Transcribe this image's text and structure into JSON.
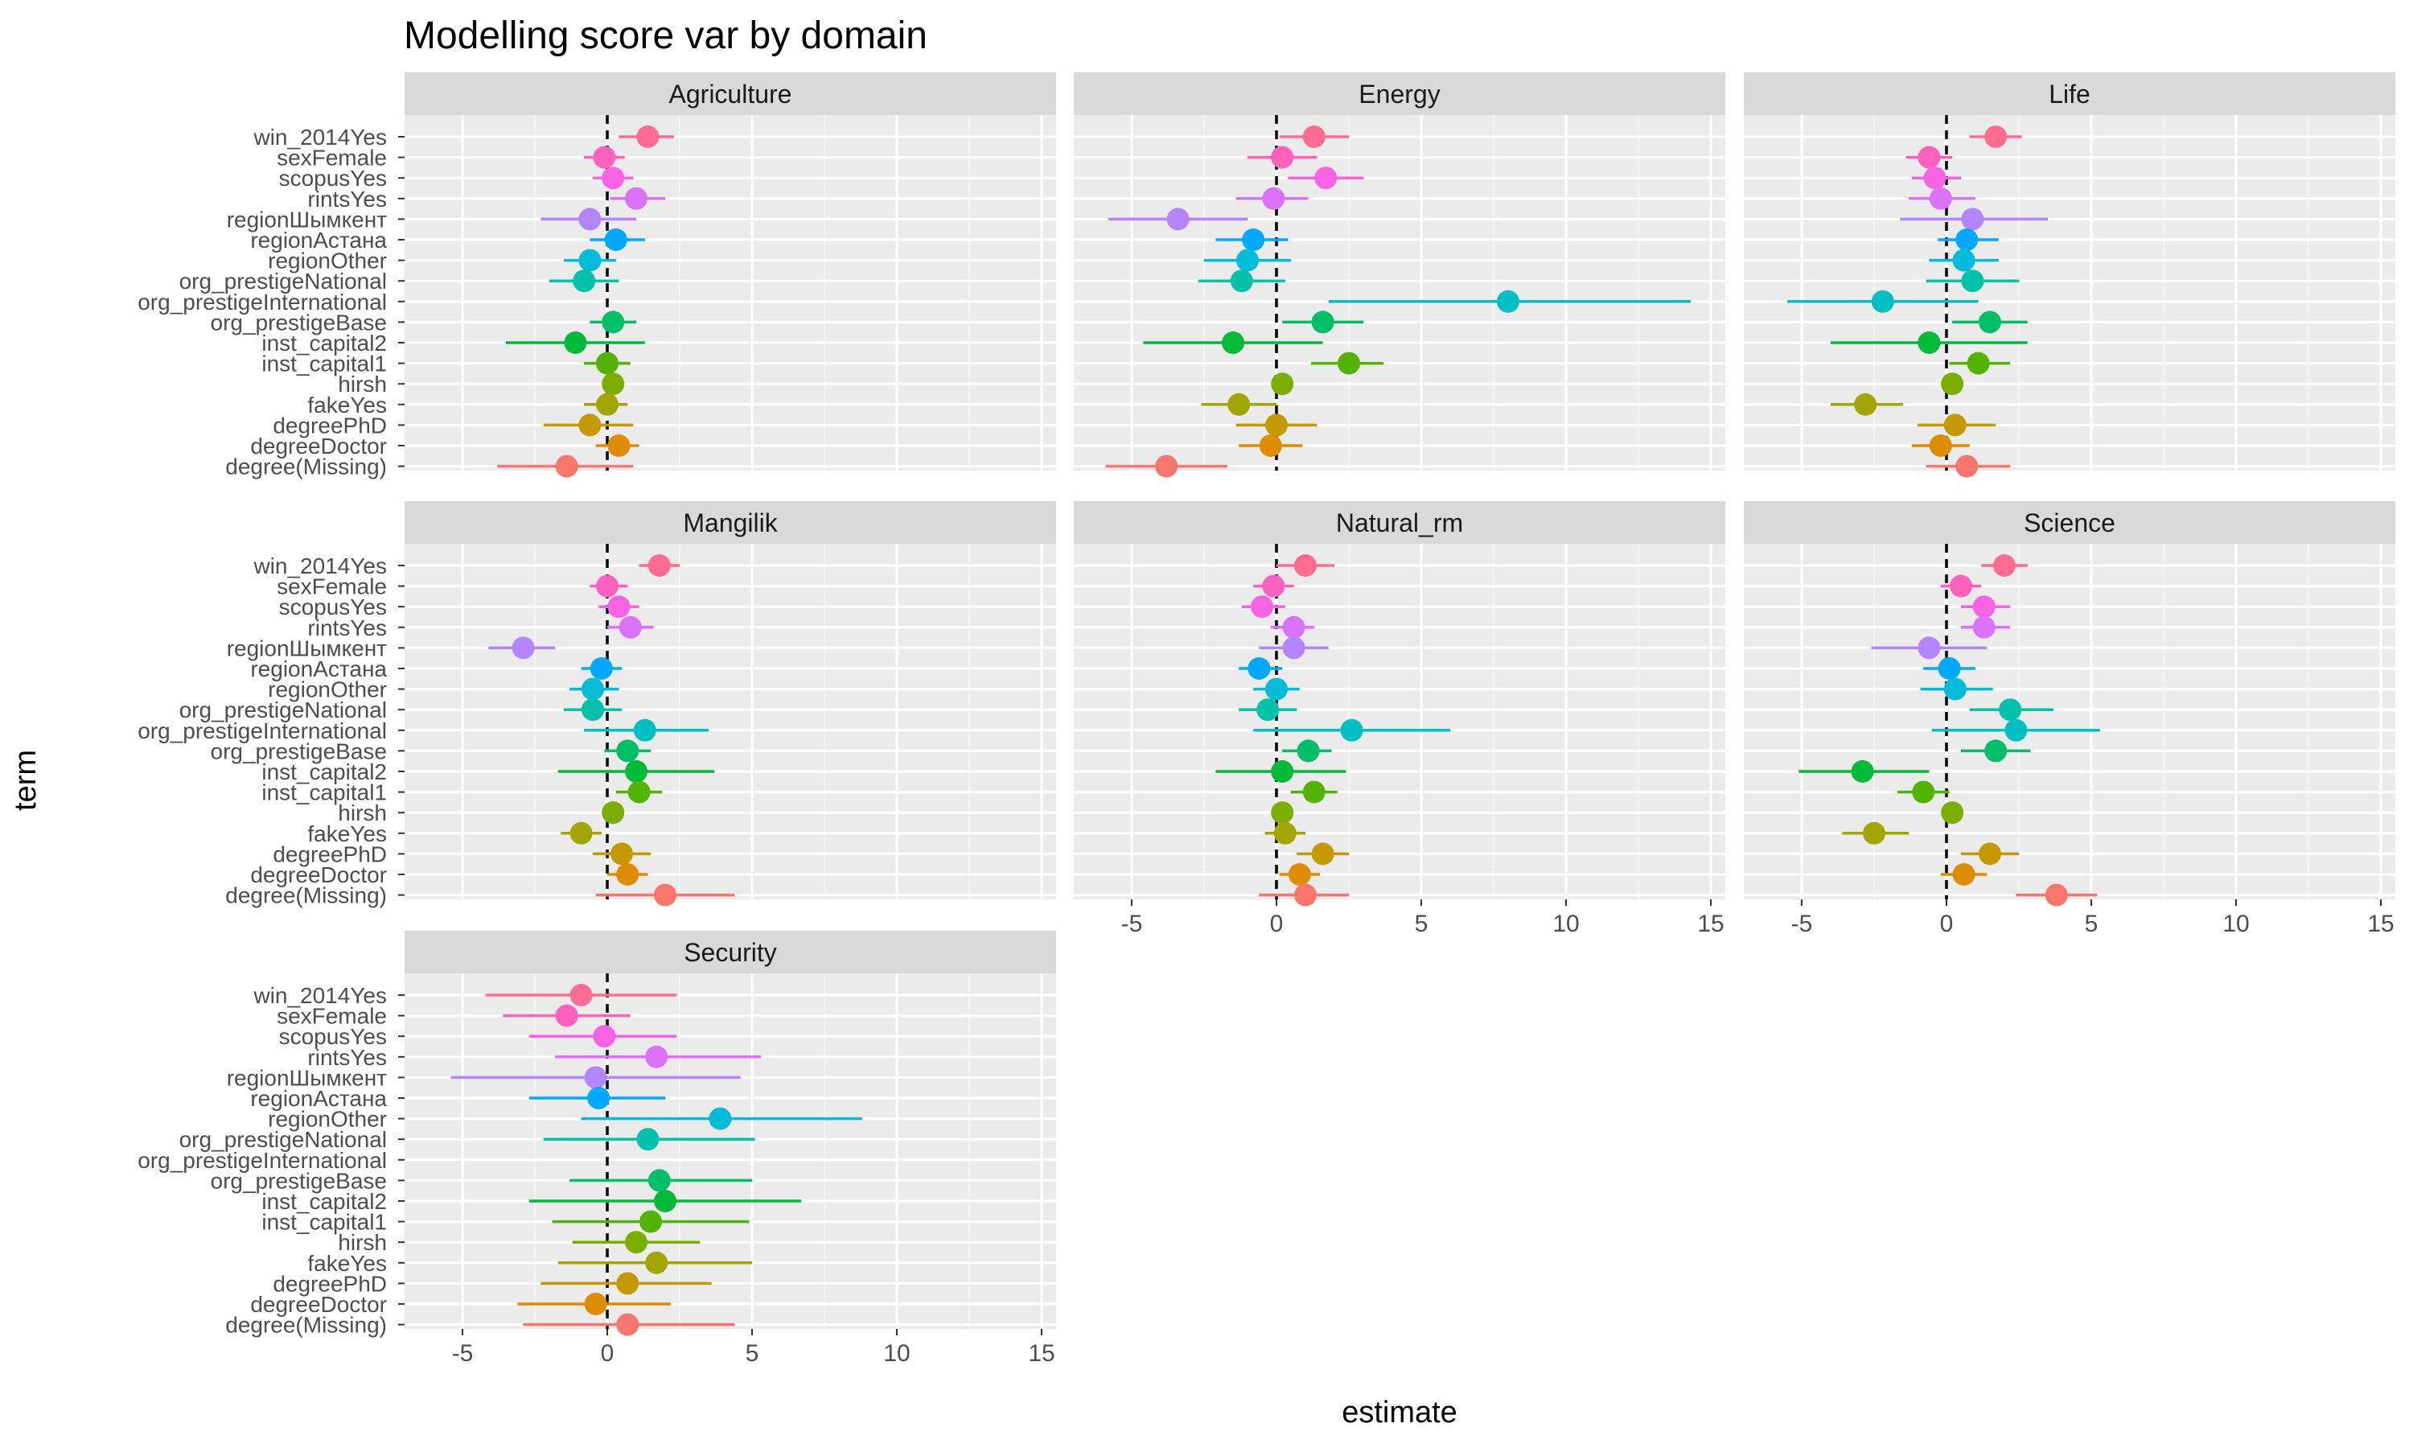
{
  "chart_data": {
    "type": "scatter",
    "title": "Modelling score var by domain",
    "xlabel": "estimate",
    "ylabel": "term",
    "xlim": [
      -7,
      15.5
    ],
    "x_ticks": [
      -5,
      0,
      5,
      10,
      15
    ],
    "grid": true,
    "legend": "none",
    "reference_line_x": 0,
    "terms": [
      "win_2014Yes",
      "sexFemale",
      "scopusYes",
      "rintsYes",
      "regionШымкент",
      "regionАстана",
      "regionOther",
      "org_prestigeNational",
      "org_prestigeInternational",
      "org_prestigeBase",
      "inst_capital2",
      "inst_capital1",
      "hirsh",
      "fakeYes",
      "degreePhD",
      "degreeDoctor",
      "degree(Missing)"
    ],
    "term_colors": [
      "#FF6C91",
      "#FF62BC",
      "#F763E0",
      "#DC71FA",
      "#B385FF",
      "#00A9FF",
      "#00BCD8",
      "#00C1A9",
      "#00BFC4",
      "#00BE67",
      "#00BA38",
      "#53B400",
      "#7CAE00",
      "#A3A500",
      "#C49A00",
      "#DE8C00",
      "#F8766D"
    ],
    "panels": [
      {
        "name": "Agriculture",
        "points": [
          {
            "term": "win_2014Yes",
            "est": 1.4,
            "lo": 0.4,
            "hi": 2.3
          },
          {
            "term": "sexFemale",
            "est": -0.1,
            "lo": -0.8,
            "hi": 0.6
          },
          {
            "term": "scopusYes",
            "est": 0.2,
            "lo": -0.5,
            "hi": 0.9
          },
          {
            "term": "rintsYes",
            "est": 1.0,
            "lo": 0.1,
            "hi": 2.0
          },
          {
            "term": "regionШымкент",
            "est": -0.6,
            "lo": -2.3,
            "hi": 1.0
          },
          {
            "term": "regionАстана",
            "est": 0.3,
            "lo": -0.6,
            "hi": 1.3
          },
          {
            "term": "regionOther",
            "est": -0.6,
            "lo": -1.5,
            "hi": 0.3
          },
          {
            "term": "org_prestigeNational",
            "est": -0.8,
            "lo": -2.0,
            "hi": 0.4
          },
          {
            "term": "org_prestigeInternational",
            "est": null,
            "lo": null,
            "hi": null
          },
          {
            "term": "org_prestigeBase",
            "est": 0.2,
            "lo": -0.6,
            "hi": 1.0
          },
          {
            "term": "inst_capital2",
            "est": -1.1,
            "lo": -3.5,
            "hi": 1.3
          },
          {
            "term": "inst_capital1",
            "est": 0.0,
            "lo": -0.8,
            "hi": 0.8
          },
          {
            "term": "hirsh",
            "est": 0.2,
            "lo": 0.1,
            "hi": 0.3
          },
          {
            "term": "fakeYes",
            "est": 0.0,
            "lo": -0.8,
            "hi": 0.7
          },
          {
            "term": "degreePhD",
            "est": -0.6,
            "lo": -2.2,
            "hi": 0.9
          },
          {
            "term": "degreeDoctor",
            "est": 0.4,
            "lo": -0.4,
            "hi": 1.1
          },
          {
            "term": "degree(Missing)",
            "est": -1.4,
            "lo": -3.8,
            "hi": 0.9
          }
        ]
      },
      {
        "name": "Energy",
        "points": [
          {
            "term": "win_2014Yes",
            "est": 1.3,
            "lo": 0.1,
            "hi": 2.5
          },
          {
            "term": "sexFemale",
            "est": 0.2,
            "lo": -1.0,
            "hi": 1.4
          },
          {
            "term": "scopusYes",
            "est": 1.7,
            "lo": 0.4,
            "hi": 3.0
          },
          {
            "term": "rintsYes",
            "est": -0.1,
            "lo": -1.4,
            "hi": 1.1
          },
          {
            "term": "regionШымкент",
            "est": -3.4,
            "lo": -5.8,
            "hi": -1.0
          },
          {
            "term": "regionАстана",
            "est": -0.8,
            "lo": -2.1,
            "hi": 0.4
          },
          {
            "term": "regionOther",
            "est": -1.0,
            "lo": -2.5,
            "hi": 0.5
          },
          {
            "term": "org_prestigeNational",
            "est": -1.2,
            "lo": -2.7,
            "hi": 0.3
          },
          {
            "term": "org_prestigeInternational",
            "est": 8.0,
            "lo": 1.8,
            "hi": 14.3
          },
          {
            "term": "org_prestigeBase",
            "est": 1.6,
            "lo": 0.2,
            "hi": 3.0
          },
          {
            "term": "inst_capital2",
            "est": -1.5,
            "lo": -4.6,
            "hi": 1.6
          },
          {
            "term": "inst_capital1",
            "est": 2.5,
            "lo": 1.2,
            "hi": 3.7
          },
          {
            "term": "hirsh",
            "est": 0.2,
            "lo": 0.1,
            "hi": 0.3
          },
          {
            "term": "fakeYes",
            "est": -1.3,
            "lo": -2.6,
            "hi": 0.0
          },
          {
            "term": "degreePhD",
            "est": 0.0,
            "lo": -1.4,
            "hi": 1.4
          },
          {
            "term": "degreeDoctor",
            "est": -0.2,
            "lo": -1.3,
            "hi": 0.9
          },
          {
            "term": "degree(Missing)",
            "est": -3.8,
            "lo": -5.9,
            "hi": -1.7
          }
        ]
      },
      {
        "name": "Life",
        "points": [
          {
            "term": "win_2014Yes",
            "est": 1.7,
            "lo": 0.8,
            "hi": 2.6
          },
          {
            "term": "sexFemale",
            "est": -0.6,
            "lo": -1.4,
            "hi": 0.2
          },
          {
            "term": "scopusYes",
            "est": -0.4,
            "lo": -1.2,
            "hi": 0.5
          },
          {
            "term": "rintsYes",
            "est": -0.2,
            "lo": -1.3,
            "hi": 1.0
          },
          {
            "term": "regionШымкент",
            "est": 0.9,
            "lo": -1.6,
            "hi": 3.5
          },
          {
            "term": "regionАстана",
            "est": 0.7,
            "lo": -0.3,
            "hi": 1.8
          },
          {
            "term": "regionOther",
            "est": 0.6,
            "lo": -0.6,
            "hi": 1.8
          },
          {
            "term": "org_prestigeNational",
            "est": 0.9,
            "lo": -0.7,
            "hi": 2.5
          },
          {
            "term": "org_prestigeInternational",
            "est": -2.2,
            "lo": -5.5,
            "hi": 1.1
          },
          {
            "term": "org_prestigeBase",
            "est": 1.5,
            "lo": 0.2,
            "hi": 2.8
          },
          {
            "term": "inst_capital2",
            "est": -0.6,
            "lo": -4.0,
            "hi": 2.8
          },
          {
            "term": "inst_capital1",
            "est": 1.1,
            "lo": 0.1,
            "hi": 2.2
          },
          {
            "term": "hirsh",
            "est": 0.2,
            "lo": 0.1,
            "hi": 0.3
          },
          {
            "term": "fakeYes",
            "est": -2.8,
            "lo": -4.0,
            "hi": -1.5
          },
          {
            "term": "degreePhD",
            "est": 0.3,
            "lo": -1.0,
            "hi": 1.7
          },
          {
            "term": "degreeDoctor",
            "est": -0.2,
            "lo": -1.2,
            "hi": 0.8
          },
          {
            "term": "degree(Missing)",
            "est": 0.7,
            "lo": -0.7,
            "hi": 2.2
          }
        ]
      },
      {
        "name": "Mangilik",
        "points": [
          {
            "term": "win_2014Yes",
            "est": 1.8,
            "lo": 1.1,
            "hi": 2.5
          },
          {
            "term": "sexFemale",
            "est": 0.0,
            "lo": -0.6,
            "hi": 0.7
          },
          {
            "term": "scopusYes",
            "est": 0.4,
            "lo": -0.3,
            "hi": 1.1
          },
          {
            "term": "rintsYes",
            "est": 0.8,
            "lo": 0.0,
            "hi": 1.6
          },
          {
            "term": "regionШымкент",
            "est": -2.9,
            "lo": -4.1,
            "hi": -1.8
          },
          {
            "term": "regionАстана",
            "est": -0.2,
            "lo": -0.9,
            "hi": 0.5
          },
          {
            "term": "regionOther",
            "est": -0.5,
            "lo": -1.3,
            "hi": 0.4
          },
          {
            "term": "org_prestigeNational",
            "est": -0.5,
            "lo": -1.5,
            "hi": 0.5
          },
          {
            "term": "org_prestigeInternational",
            "est": 1.3,
            "lo": -0.8,
            "hi": 3.5
          },
          {
            "term": "org_prestigeBase",
            "est": 0.7,
            "lo": -0.1,
            "hi": 1.5
          },
          {
            "term": "inst_capital2",
            "est": 1.0,
            "lo": -1.7,
            "hi": 3.7
          },
          {
            "term": "inst_capital1",
            "est": 1.1,
            "lo": 0.3,
            "hi": 1.9
          },
          {
            "term": "hirsh",
            "est": 0.2,
            "lo": 0.1,
            "hi": 0.3
          },
          {
            "term": "fakeYes",
            "est": -0.9,
            "lo": -1.6,
            "hi": -0.2
          },
          {
            "term": "degreePhD",
            "est": 0.5,
            "lo": -0.5,
            "hi": 1.5
          },
          {
            "term": "degreeDoctor",
            "est": 0.7,
            "lo": 0.0,
            "hi": 1.4
          },
          {
            "term": "degree(Missing)",
            "est": 2.0,
            "lo": -0.4,
            "hi": 4.4
          }
        ]
      },
      {
        "name": "Natural_rm",
        "points": [
          {
            "term": "win_2014Yes",
            "est": 1.0,
            "lo": 0.0,
            "hi": 2.0
          },
          {
            "term": "sexFemale",
            "est": -0.1,
            "lo": -0.8,
            "hi": 0.6
          },
          {
            "term": "scopusYes",
            "est": -0.5,
            "lo": -1.2,
            "hi": 0.3
          },
          {
            "term": "rintsYes",
            "est": 0.6,
            "lo": -0.2,
            "hi": 1.3
          },
          {
            "term": "regionШымкент",
            "est": 0.6,
            "lo": -0.6,
            "hi": 1.8
          },
          {
            "term": "regionАстана",
            "est": -0.6,
            "lo": -1.3,
            "hi": 0.2
          },
          {
            "term": "regionOther",
            "est": 0.0,
            "lo": -0.8,
            "hi": 0.8
          },
          {
            "term": "org_prestigeNational",
            "est": -0.3,
            "lo": -1.3,
            "hi": 0.7
          },
          {
            "term": "org_prestigeInternational",
            "est": 2.6,
            "lo": -0.8,
            "hi": 6.0
          },
          {
            "term": "org_prestigeBase",
            "est": 1.1,
            "lo": 0.2,
            "hi": 1.9
          },
          {
            "term": "inst_capital2",
            "est": 0.2,
            "lo": -2.1,
            "hi": 2.4
          },
          {
            "term": "inst_capital1",
            "est": 1.3,
            "lo": 0.5,
            "hi": 2.1
          },
          {
            "term": "hirsh",
            "est": 0.2,
            "lo": 0.1,
            "hi": 0.3
          },
          {
            "term": "fakeYes",
            "est": 0.3,
            "lo": -0.4,
            "hi": 1.0
          },
          {
            "term": "degreePhD",
            "est": 1.6,
            "lo": 0.7,
            "hi": 2.5
          },
          {
            "term": "degreeDoctor",
            "est": 0.8,
            "lo": 0.1,
            "hi": 1.5
          },
          {
            "term": "degree(Missing)",
            "est": 1.0,
            "lo": -0.6,
            "hi": 2.5
          }
        ]
      },
      {
        "name": "Science",
        "points": [
          {
            "term": "win_2014Yes",
            "est": 2.0,
            "lo": 1.2,
            "hi": 2.8
          },
          {
            "term": "sexFemale",
            "est": 0.5,
            "lo": -0.2,
            "hi": 1.2
          },
          {
            "term": "scopusYes",
            "est": 1.3,
            "lo": 0.5,
            "hi": 2.2
          },
          {
            "term": "rintsYes",
            "est": 1.3,
            "lo": 0.5,
            "hi": 2.2
          },
          {
            "term": "regionШымкент",
            "est": -0.6,
            "lo": -2.6,
            "hi": 1.4
          },
          {
            "term": "regionАстана",
            "est": 0.1,
            "lo": -0.8,
            "hi": 1.0
          },
          {
            "term": "regionOther",
            "est": 0.3,
            "lo": -0.9,
            "hi": 1.6
          },
          {
            "term": "org_prestigeNational",
            "est": 2.2,
            "lo": 0.8,
            "hi": 3.7
          },
          {
            "term": "org_prestigeInternational",
            "est": 2.4,
            "lo": -0.5,
            "hi": 5.3
          },
          {
            "term": "org_prestigeBase",
            "est": 1.7,
            "lo": 0.5,
            "hi": 2.9
          },
          {
            "term": "inst_capital2",
            "est": -2.9,
            "lo": -5.1,
            "hi": -0.6
          },
          {
            "term": "inst_capital1",
            "est": -0.8,
            "lo": -1.7,
            "hi": 0.1
          },
          {
            "term": "hirsh",
            "est": 0.2,
            "lo": 0.1,
            "hi": 0.3
          },
          {
            "term": "fakeYes",
            "est": -2.5,
            "lo": -3.6,
            "hi": -1.3
          },
          {
            "term": "degreePhD",
            "est": 1.5,
            "lo": 0.5,
            "hi": 2.5
          },
          {
            "term": "degreeDoctor",
            "est": 0.6,
            "lo": -0.2,
            "hi": 1.4
          },
          {
            "term": "degree(Missing)",
            "est": 3.8,
            "lo": 2.4,
            "hi": 5.2
          }
        ]
      },
      {
        "name": "Security",
        "points": [
          {
            "term": "win_2014Yes",
            "est": -0.9,
            "lo": -4.2,
            "hi": 2.4
          },
          {
            "term": "sexFemale",
            "est": -1.4,
            "lo": -3.6,
            "hi": 0.8
          },
          {
            "term": "scopusYes",
            "est": -0.1,
            "lo": -2.7,
            "hi": 2.4
          },
          {
            "term": "rintsYes",
            "est": 1.7,
            "lo": -1.8,
            "hi": 5.3
          },
          {
            "term": "regionШымкент",
            "est": -0.4,
            "lo": -5.4,
            "hi": 4.6
          },
          {
            "term": "regionАстана",
            "est": -0.3,
            "lo": -2.7,
            "hi": 2.0
          },
          {
            "term": "regionOther",
            "est": 3.9,
            "lo": -0.9,
            "hi": 8.8
          },
          {
            "term": "org_prestigeNational",
            "est": 1.4,
            "lo": -2.2,
            "hi": 5.1
          },
          {
            "term": "org_prestigeInternational",
            "est": null,
            "lo": null,
            "hi": null
          },
          {
            "term": "org_prestigeBase",
            "est": 1.8,
            "lo": -1.3,
            "hi": 5.0
          },
          {
            "term": "inst_capital2",
            "est": 2.0,
            "lo": -2.7,
            "hi": 6.7
          },
          {
            "term": "inst_capital1",
            "est": 1.5,
            "lo": -1.9,
            "hi": 4.9
          },
          {
            "term": "hirsh",
            "est": 1.0,
            "lo": -1.2,
            "hi": 3.2
          },
          {
            "term": "fakeYes",
            "est": 1.7,
            "lo": -1.7,
            "hi": 5.0
          },
          {
            "term": "degreePhD",
            "est": 0.7,
            "lo": -2.3,
            "hi": 3.6
          },
          {
            "term": "degreeDoctor",
            "est": -0.4,
            "lo": -3.1,
            "hi": 2.2
          },
          {
            "term": "degree(Missing)",
            "est": 0.7,
            "lo": -2.9,
            "hi": 4.4
          }
        ]
      }
    ]
  }
}
